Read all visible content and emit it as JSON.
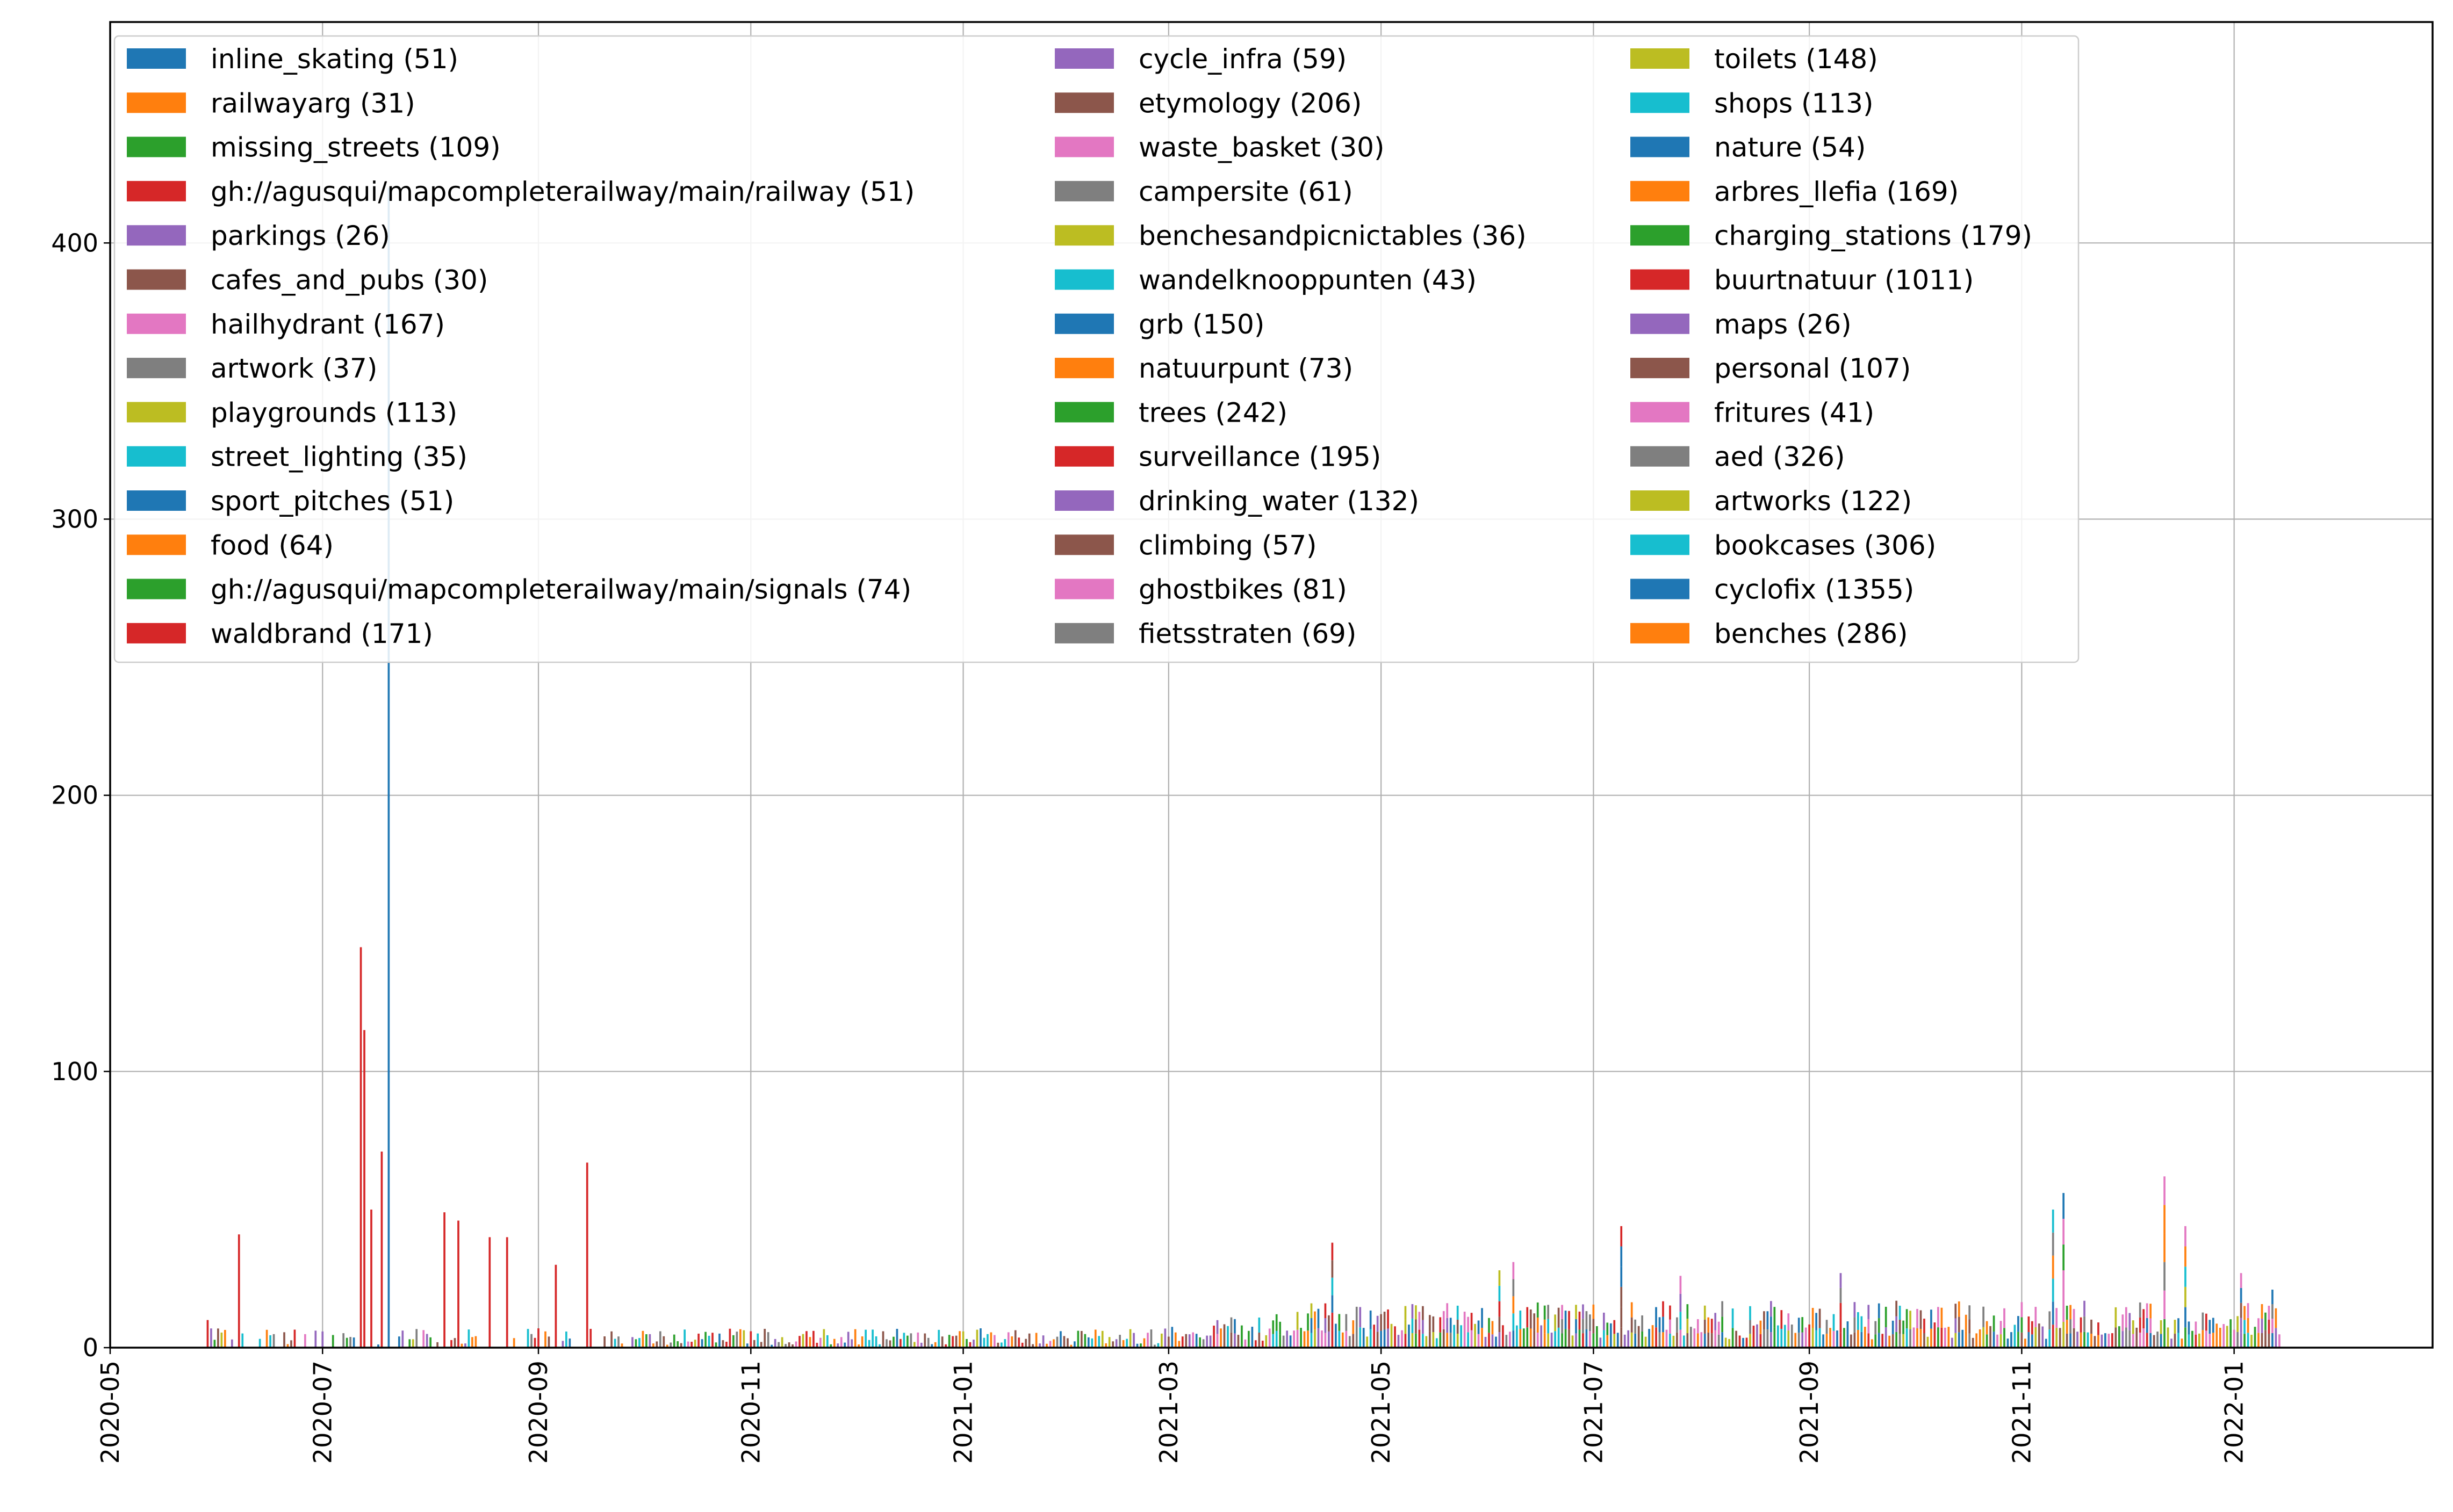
{
  "chart_data": {
    "type": "bar",
    "stacked": true,
    "grid": true,
    "legend_placement": "top-left",
    "legend_columns": 3,
    "xlim": [
      "2020-05-01",
      "2022-02-27"
    ],
    "ylim": [
      0,
      480
    ],
    "y_ticks": [
      0,
      100,
      200,
      300,
      400
    ],
    "x_ticks": [
      "2020-05",
      "2020-07",
      "2020-09",
      "2020-11",
      "2021-01",
      "2021-03",
      "2021-05",
      "2021-07",
      "2021-09",
      "2021-11",
      "2022-01"
    ],
    "x_tick_dates": [
      "2020-05-01",
      "2020-07-01",
      "2020-09-01",
      "2020-11-01",
      "2021-01-01",
      "2021-03-01",
      "2021-05-01",
      "2021-07-01",
      "2021-09-01",
      "2021-11-01",
      "2022-01-01"
    ],
    "colors": [
      "#1f77b4",
      "#ff7f0e",
      "#2ca02c",
      "#d62728",
      "#9467bd",
      "#8c564b",
      "#e377c2",
      "#7f7f7f",
      "#bcbd22",
      "#17becf"
    ],
    "legend": [
      "inline_skating (51)",
      "railwayarg (31)",
      "missing_streets (109)",
      "gh://agusqui/mapcompleterailway/main/railway (51)",
      "parkings (26)",
      "cafes_and_pubs (30)",
      "hailhydrant (167)",
      "artwork (37)",
      "playgrounds (113)",
      "street_lighting (35)",
      "sport_pitches (51)",
      "food (64)",
      "gh://agusqui/mapcompleterailway/main/signals (74)",
      "waldbrand (171)",
      "cycle_infra (59)",
      "etymology (206)",
      "waste_basket (30)",
      "campersite (61)",
      "benchesandpicnictables (36)",
      "wandelknooppunten (43)",
      "grb (150)",
      "natuurpunt (73)",
      "trees (242)",
      "surveillance (195)",
      "drinking_water (132)",
      "climbing (57)",
      "ghostbikes (81)",
      "fietsstraten (69)",
      "toilets (148)",
      "shops (113)",
      "nature (54)",
      "arbres_llefia (169)",
      "charging_stations (179)",
      "buurtnatuur (1011)",
      "maps (26)",
      "personal (107)",
      "fritures (41)",
      "aed (326)",
      "artworks (122)",
      "bookcases (306)",
      "cyclofix (1355)",
      "benches (286)"
    ],
    "notable_bars": [
      {
        "date": "2020-05-29",
        "value": 10
      },
      {
        "date": "2020-06-07",
        "value": 41
      },
      {
        "date": "2020-07-12",
        "value": 145
      },
      {
        "date": "2020-07-13",
        "value": 115
      },
      {
        "date": "2020-07-15",
        "value": 50
      },
      {
        "date": "2020-07-18",
        "value": 71
      },
      {
        "date": "2020-07-20",
        "value": 420
      },
      {
        "date": "2020-08-05",
        "value": 49
      },
      {
        "date": "2020-08-09",
        "value": 46
      },
      {
        "date": "2020-08-18",
        "value": 40
      },
      {
        "date": "2020-08-23",
        "value": 40
      },
      {
        "date": "2020-09-06",
        "value": 30
      },
      {
        "date": "2020-09-15",
        "value": 67
      },
      {
        "date": "2021-04-17",
        "value": 38
      },
      {
        "date": "2021-06-04",
        "value": 28
      },
      {
        "date": "2021-06-08",
        "value": 31
      },
      {
        "date": "2021-07-09",
        "value": 44
      },
      {
        "date": "2021-07-26",
        "value": 26
      },
      {
        "date": "2021-09-10",
        "value": 27
      },
      {
        "date": "2021-11-10",
        "value": 50
      },
      {
        "date": "2021-11-13",
        "value": 56
      },
      {
        "date": "2021-12-12",
        "value": 62
      },
      {
        "date": "2021-12-18",
        "value": 44
      },
      {
        "date": "2022-01-03",
        "value": 27
      },
      {
        "date": "2022-01-12",
        "value": 21
      }
    ]
  }
}
